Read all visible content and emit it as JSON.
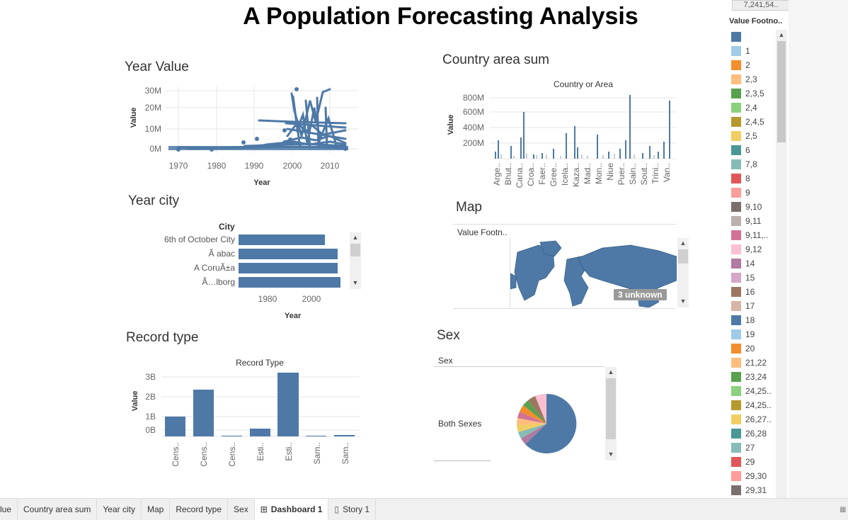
{
  "dashboard_title": "A Population Forecasting Analysis",
  "sheets": {
    "year_value": {
      "title": "Year Value",
      "ylabel": "Value",
      "xlabel": "Year",
      "y_ticks": [
        "30M",
        "20M",
        "10M",
        "0M"
      ],
      "x_ticks": [
        "1970",
        "1980",
        "1990",
        "2000",
        "2010"
      ]
    },
    "country_area": {
      "title": "Country area sum",
      "header": "Country or Area",
      "ylabel": "Value",
      "y_ticks": [
        "800M",
        "600M",
        "400M",
        "200M"
      ],
      "categories": [
        "Arge..",
        "Bhut..",
        "Cana..",
        "Croa..",
        "Faer..",
        "Gree..",
        "Icela..",
        "Kaza..",
        "Mad..",
        "Mon..",
        "Niue",
        "Puer..",
        "Sain..",
        "Sout..",
        "Trini..",
        "Van.."
      ]
    },
    "year_city": {
      "title": "Year city",
      "header": "City",
      "xlabel": "Year",
      "cities": [
        "6th of October City",
        "Ã abac",
        "A CoruÃ±a",
        "Ã…lborg"
      ],
      "x_ticks": [
        "1980",
        "2000"
      ]
    },
    "map": {
      "title": "Map",
      "header": "Value Footn..",
      "unknown_badge": "3 unknown"
    },
    "record_type": {
      "title": "Record type",
      "header": "Record Type",
      "ylabel": "Value",
      "y_ticks": [
        "3B",
        "2B",
        "1B",
        "0B"
      ],
      "categories": [
        "Cens..",
        "Cens..",
        "Cens..",
        "Esti..",
        "Esti..",
        "Sam..",
        "Sam.."
      ]
    },
    "sex": {
      "title": "Sex",
      "header": "Sex",
      "row_label": "Both Sexes"
    }
  },
  "legend": {
    "top_value": "7,241,54..",
    "title": "Value Footno..",
    "items": [
      {
        "label": "",
        "color": "#4e79a7"
      },
      {
        "label": "1",
        "color": "#a0cbe8"
      },
      {
        "label": "2",
        "color": "#f28e2b"
      },
      {
        "label": "2,3",
        "color": "#ffbe7d"
      },
      {
        "label": "2,3,5",
        "color": "#59a14f"
      },
      {
        "label": "2,4",
        "color": "#8cd17d"
      },
      {
        "label": "2,4,5",
        "color": "#b6992d"
      },
      {
        "label": "2,5",
        "color": "#f1ce63"
      },
      {
        "label": "6",
        "color": "#499894"
      },
      {
        "label": "7,8",
        "color": "#86bcb6"
      },
      {
        "label": "8",
        "color": "#e15759"
      },
      {
        "label": "9",
        "color": "#ff9d9a"
      },
      {
        "label": "9,10",
        "color": "#79706e"
      },
      {
        "label": "9,11",
        "color": "#bab0ac"
      },
      {
        "label": "9,11,..",
        "color": "#d37295"
      },
      {
        "label": "9,12",
        "color": "#fabfd2"
      },
      {
        "label": "14",
        "color": "#b07aa1"
      },
      {
        "label": "15",
        "color": "#d4a6c8"
      },
      {
        "label": "16",
        "color": "#9d7660"
      },
      {
        "label": "17",
        "color": "#d7b5a6"
      },
      {
        "label": "18",
        "color": "#4e79a7"
      },
      {
        "label": "19",
        "color": "#a0cbe8"
      },
      {
        "label": "20",
        "color": "#f28e2b"
      },
      {
        "label": "21,22",
        "color": "#ffbe7d"
      },
      {
        "label": "23,24",
        "color": "#59a14f"
      },
      {
        "label": "24,25..",
        "color": "#8cd17d"
      },
      {
        "label": "24,25..",
        "color": "#b6992d"
      },
      {
        "label": "26,27..",
        "color": "#f1ce63"
      },
      {
        "label": "26,28",
        "color": "#499894"
      },
      {
        "label": "27",
        "color": "#86bcb6"
      },
      {
        "label": "29",
        "color": "#e15759"
      },
      {
        "label": "29,30",
        "color": "#ff9d9a"
      },
      {
        "label": "29,31",
        "color": "#79706e"
      }
    ]
  },
  "tabs": [
    {
      "label": "lue",
      "icon": ""
    },
    {
      "label": "Country area sum",
      "icon": ""
    },
    {
      "label": "Year city",
      "icon": ""
    },
    {
      "label": "Map",
      "icon": ""
    },
    {
      "label": "Record type",
      "icon": ""
    },
    {
      "label": "Sex",
      "icon": ""
    },
    {
      "label": "Dashboard 1",
      "icon": "⊞",
      "active": true
    },
    {
      "label": "Story 1",
      "icon": "▯"
    }
  ],
  "colors": {
    "mark": "#4e79a7",
    "grid": "#e6e6e6"
  }
}
